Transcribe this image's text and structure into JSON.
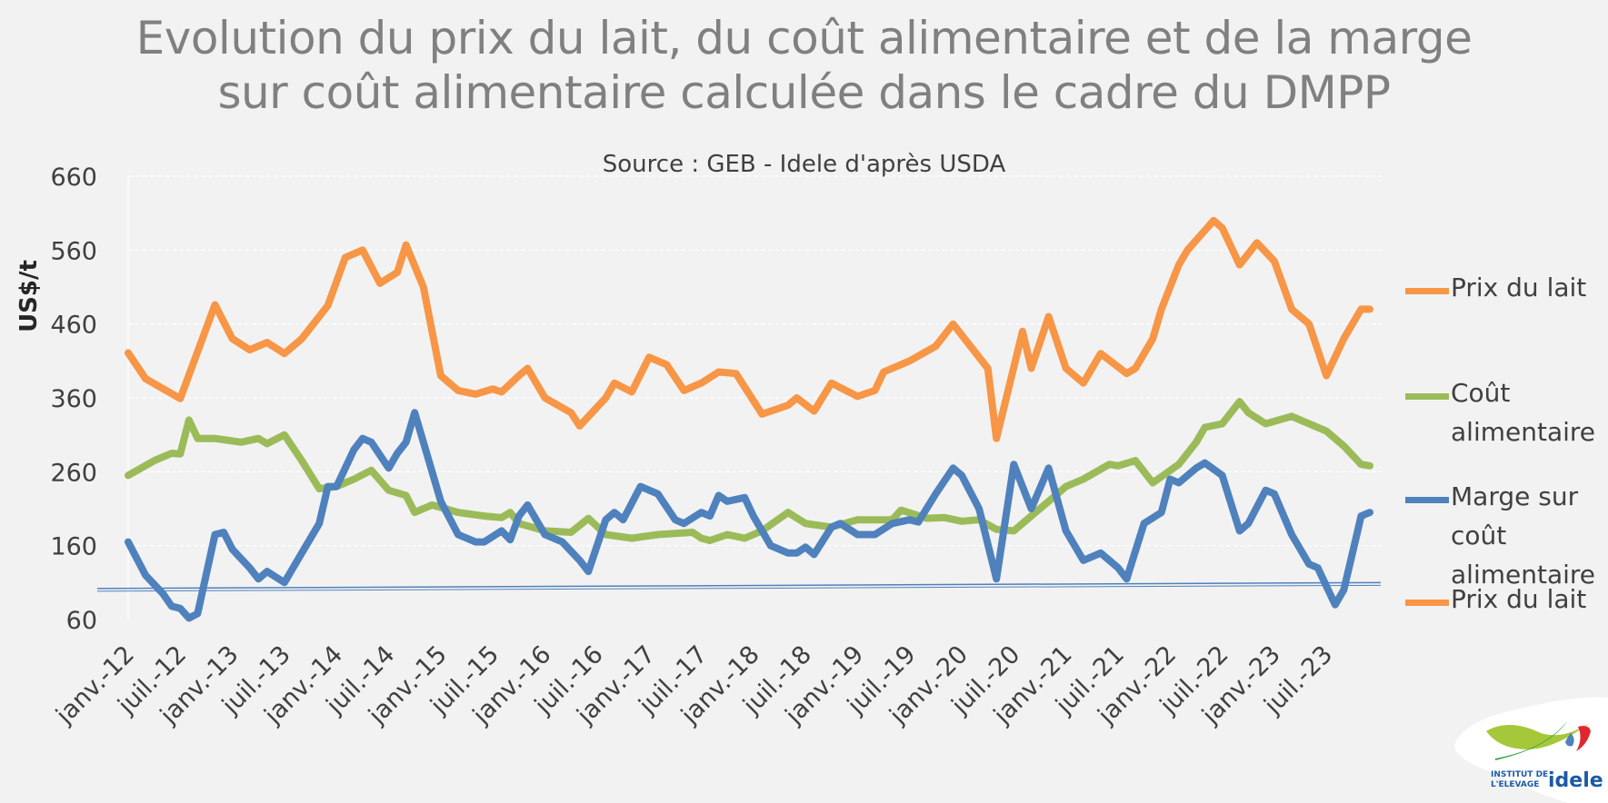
{
  "title_lines": [
    "Evolution du prix du lait, du coût alimentaire et de la marge",
    "sur coût alimentaire calculée dans le cadre du DMPP"
  ],
  "logo": {
    "text_line1": "INSTITUT DE",
    "text_line2": "L'ELEVAGE",
    "brand": "idele"
  },
  "chart_data": {
    "type": "line",
    "title": "Evolution du prix du lait, du coût alimentaire et de la marge sur coût alimentaire calculée dans le cadre du DMPP",
    "subtitle": "Source : GEB - Idele d'après USDA",
    "xlabel": "",
    "ylabel": "US$/t",
    "ylim": [
      60,
      660
    ],
    "yticks": [
      660,
      560,
      460,
      360,
      260,
      160,
      60
    ],
    "xlim": [
      "2012-01",
      "2023-12"
    ],
    "xtick_labels": [
      "janv.-12",
      "juil.-12",
      "janv.-13",
      "juil.-13",
      "janv.-14",
      "juil.-14",
      "janv.-15",
      "juil.-15",
      "janv.-16",
      "juil.-16",
      "janv.-17",
      "juil.-17",
      "janv.-18",
      "juil.-18",
      "janv.-19",
      "juil.-19",
      "janv.-20",
      "juil.-20",
      "janv.-21",
      "juil.-21",
      "janv.-22",
      "juil.-22",
      "janv.-23",
      "juil.-23"
    ],
    "grid": true,
    "legend_position": "right",
    "legend": [
      {
        "label": "Prix du lait",
        "color": "#f79646"
      },
      {
        "label": "Coût alimentaire",
        "color": "#9bbb59"
      },
      {
        "label": "Marge sur coût alimentaire",
        "color": "#4f81bd"
      },
      {
        "label": "Prix du lait",
        "color": "#f79646"
      }
    ],
    "reference_line": {
      "color": "#4f81bd",
      "y_start": 102,
      "y_end": 110
    },
    "series": [
      {
        "name": "Prix du lait",
        "color": "#f79646",
        "points": [
          [
            "2012-01",
            421
          ],
          [
            "2012-03",
            386
          ],
          [
            "2012-07",
            359
          ],
          [
            "2012-11",
            486
          ],
          [
            "2013-01",
            440
          ],
          [
            "2013-03",
            425
          ],
          [
            "2013-05",
            435
          ],
          [
            "2013-07",
            420
          ],
          [
            "2013-09",
            440
          ],
          [
            "2013-11",
            470
          ],
          [
            "2013-12",
            485
          ],
          [
            "2014-02",
            550
          ],
          [
            "2014-04",
            560
          ],
          [
            "2014-06",
            515
          ],
          [
            "2014-08",
            530
          ],
          [
            "2014-09",
            567
          ],
          [
            "2014-11",
            510
          ],
          [
            "2015-01",
            390
          ],
          [
            "2015-03",
            370
          ],
          [
            "2015-05",
            365
          ],
          [
            "2015-07",
            372
          ],
          [
            "2015-08",
            368
          ],
          [
            "2015-10",
            390
          ],
          [
            "2015-11",
            400
          ],
          [
            "2016-01",
            360
          ],
          [
            "2016-04",
            340
          ],
          [
            "2016-05",
            322
          ],
          [
            "2016-08",
            360
          ],
          [
            "2016-09",
            380
          ],
          [
            "2016-11",
            368
          ],
          [
            "2017-01",
            415
          ],
          [
            "2017-03",
            405
          ],
          [
            "2017-05",
            370
          ],
          [
            "2017-07",
            380
          ],
          [
            "2017-09",
            395
          ],
          [
            "2017-11",
            393
          ],
          [
            "2018-02",
            338
          ],
          [
            "2018-05",
            350
          ],
          [
            "2018-06",
            360
          ],
          [
            "2018-08",
            342
          ],
          [
            "2018-10",
            380
          ],
          [
            "2019-01",
            362
          ],
          [
            "2019-03",
            370
          ],
          [
            "2019-04",
            395
          ],
          [
            "2019-07",
            410
          ],
          [
            "2019-10",
            430
          ],
          [
            "2019-12",
            460
          ],
          [
            "2020-02",
            430
          ],
          [
            "2020-04",
            400
          ],
          [
            "2020-05",
            305
          ],
          [
            "2020-08",
            450
          ],
          [
            "2020-09",
            400
          ],
          [
            "2020-11",
            470
          ],
          [
            "2021-01",
            400
          ],
          [
            "2021-03",
            380
          ],
          [
            "2021-05",
            420
          ],
          [
            "2021-08",
            393
          ],
          [
            "2021-09",
            400
          ],
          [
            "2021-11",
            440
          ],
          [
            "2021-12",
            480
          ],
          [
            "2022-02",
            540
          ],
          [
            "2022-03",
            560
          ],
          [
            "2022-06",
            600
          ],
          [
            "2022-07",
            590
          ],
          [
            "2022-09",
            540
          ],
          [
            "2022-11",
            570
          ],
          [
            "2023-01",
            545
          ],
          [
            "2023-03",
            480
          ],
          [
            "2023-05",
            460
          ],
          [
            "2023-07",
            390
          ],
          [
            "2023-09",
            440
          ],
          [
            "2023-11",
            480
          ],
          [
            "2023-12",
            480
          ]
        ]
      },
      {
        "name": "Coût alimentaire",
        "color": "#9bbb59",
        "points": [
          [
            "2012-01",
            255
          ],
          [
            "2012-04",
            275
          ],
          [
            "2012-06",
            285
          ],
          [
            "2012-07",
            284
          ],
          [
            "2012-08",
            330
          ],
          [
            "2012-09",
            305
          ],
          [
            "2012-11",
            305
          ],
          [
            "2013-02",
            300
          ],
          [
            "2013-04",
            305
          ],
          [
            "2013-05",
            298
          ],
          [
            "2013-07",
            310
          ],
          [
            "2013-09",
            275
          ],
          [
            "2013-11",
            237
          ],
          [
            "2014-01",
            240
          ],
          [
            "2014-03",
            250
          ],
          [
            "2014-05",
            262
          ],
          [
            "2014-07",
            235
          ],
          [
            "2014-09",
            228
          ],
          [
            "2014-10",
            205
          ],
          [
            "2014-12",
            215
          ],
          [
            "2015-03",
            205
          ],
          [
            "2015-06",
            200
          ],
          [
            "2015-08",
            198
          ],
          [
            "2015-09",
            205
          ],
          [
            "2015-10",
            190
          ],
          [
            "2016-01",
            180
          ],
          [
            "2016-04",
            178
          ],
          [
            "2016-06",
            197
          ],
          [
            "2016-08",
            175
          ],
          [
            "2016-11",
            170
          ],
          [
            "2017-02",
            175
          ],
          [
            "2017-06",
            178
          ],
          [
            "2017-07",
            170
          ],
          [
            "2017-08",
            167
          ],
          [
            "2017-10",
            175
          ],
          [
            "2017-12",
            170
          ],
          [
            "2018-02",
            180
          ],
          [
            "2018-05",
            205
          ],
          [
            "2018-07",
            190
          ],
          [
            "2018-10",
            185
          ],
          [
            "2019-01",
            195
          ],
          [
            "2019-05",
            195
          ],
          [
            "2019-06",
            208
          ],
          [
            "2019-09",
            197
          ],
          [
            "2019-11",
            198
          ],
          [
            "2020-01",
            193
          ],
          [
            "2020-03",
            195
          ],
          [
            "2020-05",
            182
          ],
          [
            "2020-07",
            180
          ],
          [
            "2020-09",
            200
          ],
          [
            "2020-11",
            220
          ],
          [
            "2021-01",
            240
          ],
          [
            "2021-03",
            250
          ],
          [
            "2021-06",
            270
          ],
          [
            "2021-07",
            268
          ],
          [
            "2021-09",
            275
          ],
          [
            "2021-11",
            245
          ],
          [
            "2022-02",
            270
          ],
          [
            "2022-04",
            300
          ],
          [
            "2022-05",
            320
          ],
          [
            "2022-07",
            325
          ],
          [
            "2022-09",
            355
          ],
          [
            "2022-10",
            340
          ],
          [
            "2022-12",
            325
          ],
          [
            "2023-03",
            335
          ],
          [
            "2023-04",
            330
          ],
          [
            "2023-07",
            315
          ],
          [
            "2023-09",
            295
          ],
          [
            "2023-11",
            270
          ],
          [
            "2023-12",
            268
          ]
        ]
      },
      {
        "name": "Marge sur coût alimentaire",
        "color": "#4f81bd",
        "points": [
          [
            "2012-01",
            165
          ],
          [
            "2012-03",
            120
          ],
          [
            "2012-05",
            95
          ],
          [
            "2012-06",
            78
          ],
          [
            "2012-07",
            75
          ],
          [
            "2012-08",
            62
          ],
          [
            "2012-09",
            68
          ],
          [
            "2012-11",
            175
          ],
          [
            "2012-12",
            178
          ],
          [
            "2013-01",
            155
          ],
          [
            "2013-03",
            130
          ],
          [
            "2013-04",
            115
          ],
          [
            "2013-05",
            125
          ],
          [
            "2013-07",
            110
          ],
          [
            "2013-09",
            150
          ],
          [
            "2013-11",
            190
          ],
          [
            "2013-12",
            240
          ],
          [
            "2014-01",
            240
          ],
          [
            "2014-03",
            290
          ],
          [
            "2014-04",
            305
          ],
          [
            "2014-05",
            300
          ],
          [
            "2014-07",
            265
          ],
          [
            "2014-08",
            285
          ],
          [
            "2014-09",
            300
          ],
          [
            "2014-10",
            340
          ],
          [
            "2014-11",
            300
          ],
          [
            "2015-01",
            220
          ],
          [
            "2015-03",
            175
          ],
          [
            "2015-05",
            165
          ],
          [
            "2015-06",
            165
          ],
          [
            "2015-08",
            180
          ],
          [
            "2015-09",
            168
          ],
          [
            "2015-10",
            200
          ],
          [
            "2015-11",
            215
          ],
          [
            "2016-01",
            175
          ],
          [
            "2016-03",
            165
          ],
          [
            "2016-05",
            140
          ],
          [
            "2016-06",
            125
          ],
          [
            "2016-08",
            195
          ],
          [
            "2016-09",
            205
          ],
          [
            "2016-10",
            195
          ],
          [
            "2016-12",
            240
          ],
          [
            "2017-02",
            230
          ],
          [
            "2017-04",
            195
          ],
          [
            "2017-05",
            190
          ],
          [
            "2017-07",
            205
          ],
          [
            "2017-08",
            200
          ],
          [
            "2017-09",
            228
          ],
          [
            "2017-10",
            220
          ],
          [
            "2017-12",
            225
          ],
          [
            "2018-01",
            200
          ],
          [
            "2018-03",
            160
          ],
          [
            "2018-05",
            150
          ],
          [
            "2018-06",
            150
          ],
          [
            "2018-07",
            158
          ],
          [
            "2018-08",
            148
          ],
          [
            "2018-10",
            185
          ],
          [
            "2018-11",
            190
          ],
          [
            "2019-01",
            175
          ],
          [
            "2019-03",
            175
          ],
          [
            "2019-05",
            190
          ],
          [
            "2019-07",
            195
          ],
          [
            "2019-08",
            192
          ],
          [
            "2019-10",
            230
          ],
          [
            "2019-12",
            265
          ],
          [
            "2020-01",
            255
          ],
          [
            "2020-03",
            210
          ],
          [
            "2020-05",
            115
          ],
          [
            "2020-07",
            270
          ],
          [
            "2020-09",
            210
          ],
          [
            "2020-11",
            265
          ],
          [
            "2021-01",
            180
          ],
          [
            "2021-03",
            140
          ],
          [
            "2021-05",
            150
          ],
          [
            "2021-07",
            130
          ],
          [
            "2021-08",
            115
          ],
          [
            "2021-10",
            190
          ],
          [
            "2021-12",
            205
          ],
          [
            "2022-01",
            250
          ],
          [
            "2022-02",
            245
          ],
          [
            "2022-04",
            265
          ],
          [
            "2022-05",
            272
          ],
          [
            "2022-07",
            255
          ],
          [
            "2022-09",
            180
          ],
          [
            "2022-10",
            190
          ],
          [
            "2022-12",
            235
          ],
          [
            "2023-01",
            230
          ],
          [
            "2023-03",
            175
          ],
          [
            "2023-05",
            135
          ],
          [
            "2023-06",
            130
          ],
          [
            "2023-08",
            80
          ],
          [
            "2023-09",
            100
          ],
          [
            "2023-10",
            150
          ],
          [
            "2023-11",
            200
          ],
          [
            "2023-12",
            205
          ]
        ]
      }
    ]
  }
}
